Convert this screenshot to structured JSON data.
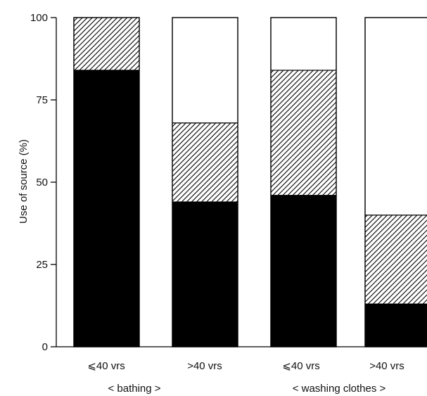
{
  "chart_data": {
    "type": "bar",
    "stacked": true,
    "ylabel": "Use of source (%)",
    "ylim": [
      0,
      100
    ],
    "yticks": [
      "0",
      "25",
      "50",
      "75",
      "100"
    ],
    "categories": [
      "⩽40 vrs",
      ">40 vrs",
      "⩽40 vrs",
      ">40 vrs"
    ],
    "groups": [
      {
        "label": "< bathing >",
        "categories": [
          0,
          1
        ]
      },
      {
        "label": "< washing clothes >",
        "categories": [
          2,
          3
        ]
      }
    ],
    "series": [
      {
        "fill": "#000000",
        "values": [
          84,
          44,
          46,
          13
        ]
      },
      {
        "fill": "hatched",
        "values": [
          16,
          24,
          38,
          27
        ]
      },
      {
        "fill": "#ffffff",
        "values": [
          0,
          32,
          16,
          60
        ]
      }
    ],
    "grid": false,
    "legend": "none"
  }
}
